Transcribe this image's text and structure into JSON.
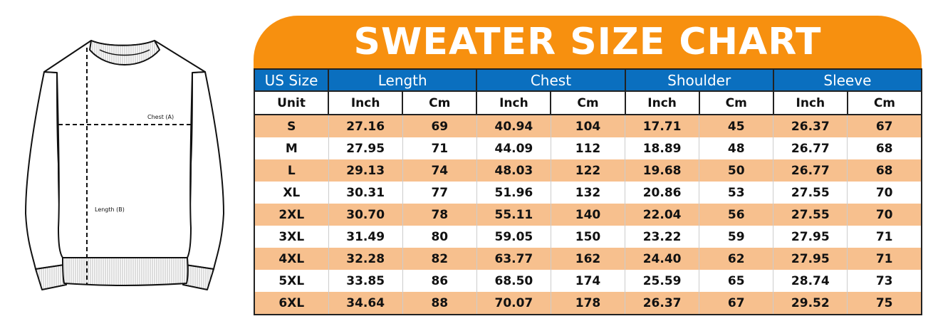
{
  "title": "SWEATER SIZE CHART",
  "diagram": {
    "chest_label": "Chest (A)",
    "length_label": "Length (B)"
  },
  "colors": {
    "banner": "#f7900f",
    "header": "#0a6fbf",
    "stripe": "#f7c08e"
  },
  "headers": [
    "US Size",
    "Length",
    "Chest",
    "Shoulder",
    "Sleeve"
  ],
  "units": [
    "Unit",
    "Inch",
    "Cm",
    "Inch",
    "Cm",
    "Inch",
    "Cm",
    "Inch",
    "Cm"
  ],
  "rows": [
    [
      "S",
      "27.16",
      "69",
      "40.94",
      "104",
      "17.71",
      "45",
      "26.37",
      "67"
    ],
    [
      "M",
      "27.95",
      "71",
      "44.09",
      "112",
      "18.89",
      "48",
      "26.77",
      "68"
    ],
    [
      "L",
      "29.13",
      "74",
      "48.03",
      "122",
      "19.68",
      "50",
      "26.77",
      "68"
    ],
    [
      "XL",
      "30.31",
      "77",
      "51.96",
      "132",
      "20.86",
      "53",
      "27.55",
      "70"
    ],
    [
      "2XL",
      "30.70",
      "78",
      "55.11",
      "140",
      "22.04",
      "56",
      "27.55",
      "70"
    ],
    [
      "3XL",
      "31.49",
      "80",
      "59.05",
      "150",
      "23.22",
      "59",
      "27.95",
      "71"
    ],
    [
      "4XL",
      "32.28",
      "82",
      "63.77",
      "162",
      "24.40",
      "62",
      "27.95",
      "71"
    ],
    [
      "5XL",
      "33.85",
      "86",
      "68.50",
      "174",
      "25.59",
      "65",
      "28.74",
      "73"
    ],
    [
      "6XL",
      "34.64",
      "88",
      "70.07",
      "178",
      "26.37",
      "67",
      "29.52",
      "75"
    ]
  ]
}
